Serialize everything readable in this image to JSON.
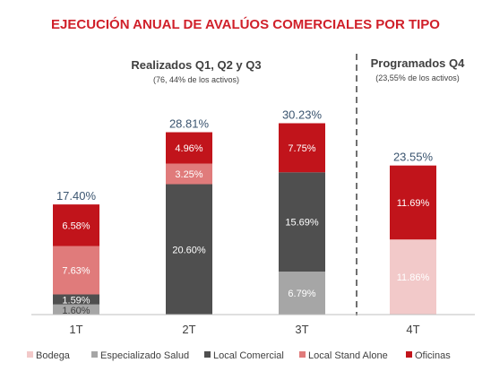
{
  "colors": {
    "title": "#d0202a",
    "Bodega": "#f2c9c9",
    "Especializado Salud": "#a6a6a6",
    "Local Comercial": "#4f4f4f",
    "Local Stand Alone": "#e07b7b",
    "Oficinas": "#c1141b"
  },
  "chart_data": {
    "type": "bar",
    "stacked": true,
    "title": "EJECUCIÓN ANUAL DE AVALÚOS COMERCIALES POR TIPO",
    "sections": [
      {
        "title": "Realizados Q1, Q2 y Q3",
        "note": "(76, 44% de los activos)"
      },
      {
        "title": "Programados Q4",
        "note": "(23,55% de los activos)"
      }
    ],
    "categories": [
      "1T",
      "2T",
      "3T",
      "4T"
    ],
    "totals": [
      "17.40%",
      "28.81%",
      "30.23%",
      "23.55%"
    ],
    "legend_position": "bottom",
    "ylim": [
      0,
      32
    ],
    "series": [
      {
        "name": "Bodega",
        "values": [
          0,
          0,
          0,
          11.86
        ],
        "labels": [
          "",
          "",
          "",
          "11.86%"
        ]
      },
      {
        "name": "Especializado Salud",
        "values": [
          1.6,
          0,
          6.79,
          0
        ],
        "labels": [
          "1.60%",
          "",
          "6.79%",
          ""
        ]
      },
      {
        "name": "Local Comercial",
        "values": [
          1.59,
          20.6,
          15.69,
          0
        ],
        "labels": [
          "1.59%",
          "20.60%",
          "15.69%",
          ""
        ]
      },
      {
        "name": "Local Stand Alone",
        "values": [
          7.63,
          3.25,
          0,
          0
        ],
        "labels": [
          "7.63%",
          "3.25%",
          "",
          ""
        ]
      },
      {
        "name": "Oficinas",
        "values": [
          6.58,
          4.96,
          7.75,
          11.69
        ],
        "labels": [
          "6.58%",
          "4.96%",
          "7.75%",
          "11.69%"
        ]
      }
    ]
  }
}
